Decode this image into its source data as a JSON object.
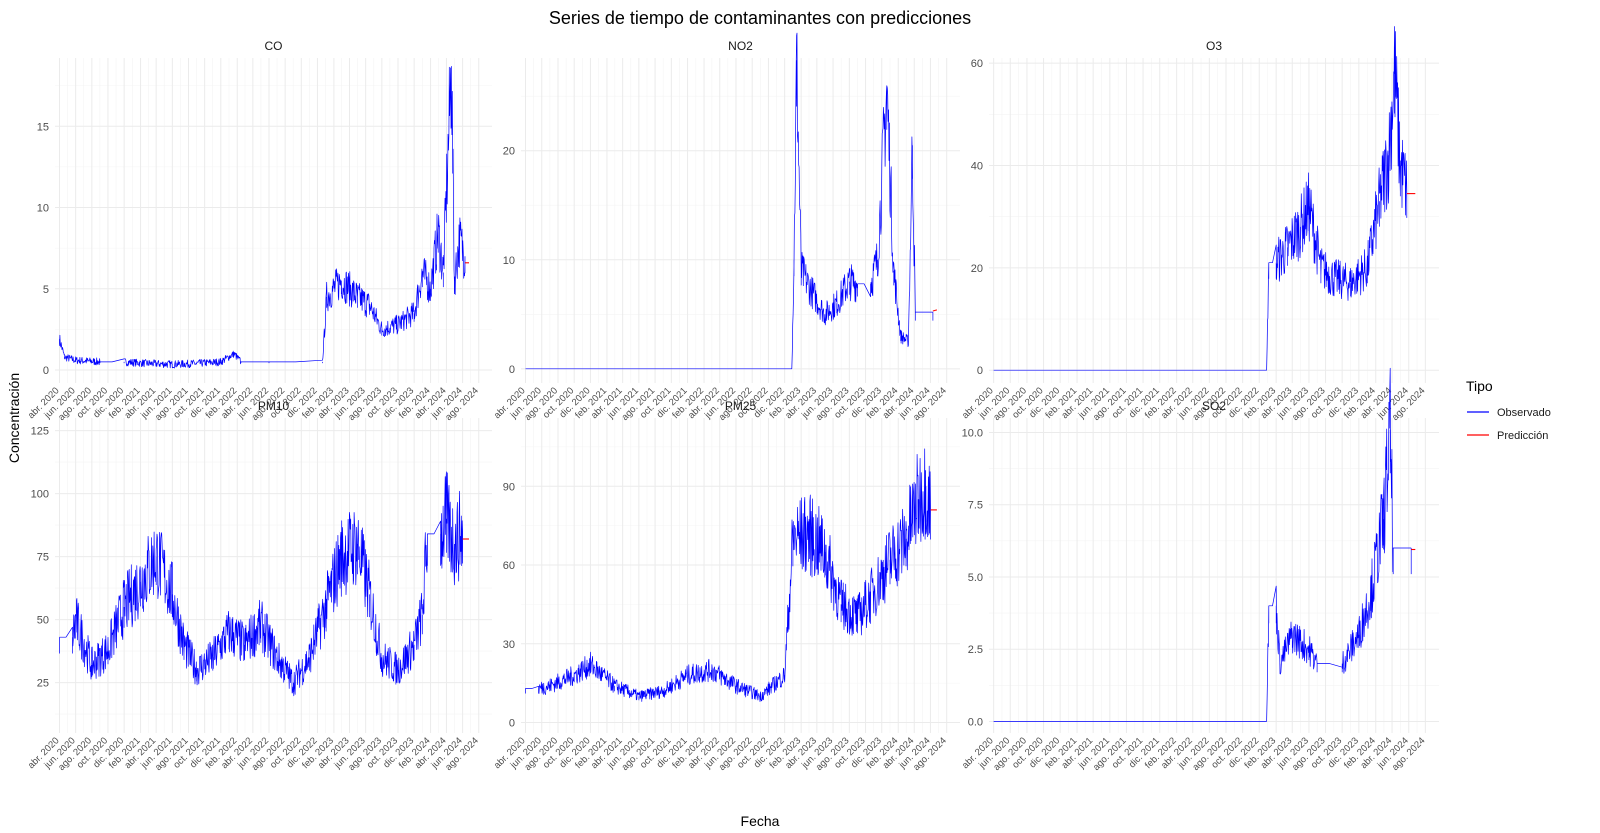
{
  "chart_data": {
    "type": "line",
    "title": "Series de tiempo de contaminantes con predicciones",
    "xlabel": "Fecha",
    "ylabel": "Concentración",
    "legend": {
      "title": "Tipo",
      "position": "right",
      "entries": [
        {
          "name": "Observado",
          "color": "#0000ff"
        },
        {
          "name": "Predicción",
          "color": "#ff0000"
        }
      ]
    },
    "grid": true,
    "x_ticks": [
      "abr. 2020",
      "jun. 2020",
      "ago. 2020",
      "oct. 2020",
      "dic. 2020",
      "feb. 2021",
      "abr. 2021",
      "jun. 2021",
      "ago. 2021",
      "oct. 2021",
      "dic. 2021",
      "feb. 2022",
      "abr. 2022",
      "jun. 2022",
      "ago. 2022",
      "oct. 2022",
      "dic. 2022",
      "feb. 2023",
      "abr. 2023",
      "jun. 2023",
      "ago. 2023",
      "oct. 2023",
      "dic. 2023",
      "feb. 2024",
      "abr. 2024",
      "jun. 2024",
      "ago. 2024"
    ],
    "xlim": [
      "2020-03-15",
      "2024-09-20"
    ],
    "panels": [
      {
        "name": "CO",
        "ylim": [
          -0.8,
          19.2
        ],
        "y_ticks": [
          0,
          5,
          10,
          15
        ],
        "y_tick_labels": [
          "0",
          "5",
          "10",
          "15"
        ],
        "series": [
          {
            "name": "Observado",
            "color": "#0000ff",
            "points": [
              [
                "2020-04-01",
                1.9
              ],
              [
                "2020-04-20",
                0.8
              ],
              [
                "2020-06-01",
                0.6
              ],
              [
                "2020-09-01",
                0.5
              ],
              [
                "2020-12-01",
                0.5
              ],
              [
                "2021-03-01",
                0.4
              ],
              [
                "2021-06-01",
                0.35
              ],
              [
                "2021-09-01",
                0.4
              ],
              [
                "2021-12-01",
                0.5
              ],
              [
                "2022-01-20",
                1.0
              ],
              [
                "2022-02-15",
                0.5
              ],
              [
                "2022-06-01",
                0.5
              ],
              [
                "2022-12-20",
                0.5
              ],
              [
                "2023-01-05",
                4.5
              ],
              [
                "2023-03-01",
                5.5
              ],
              [
                "2023-05-01",
                4.5
              ],
              [
                "2023-06-15",
                4.0
              ],
              [
                "2023-08-01",
                2.5
              ],
              [
                "2023-10-01",
                2.8
              ],
              [
                "2023-12-01",
                3.5
              ],
              [
                "2024-01-01",
                6.0
              ],
              [
                "2024-02-01",
                5.0
              ],
              [
                "2024-03-01",
                8.5
              ],
              [
                "2024-03-20",
                6.0
              ],
              [
                "2024-04-20",
                18.7
              ],
              [
                "2024-05-01",
                5.5
              ],
              [
                "2024-05-20",
                8.0
              ],
              [
                "2024-06-10",
                7.0
              ]
            ]
          },
          {
            "name": "Predicción",
            "color": "#ff0000",
            "points": [
              [
                "2024-06-10",
                6.6
              ],
              [
                "2024-06-25",
                6.6
              ]
            ]
          }
        ]
      },
      {
        "name": "NO2",
        "ylim": [
          -1.3,
          28.5
        ],
        "y_ticks": [
          0,
          10,
          20
        ],
        "y_tick_labels": [
          "0",
          "10",
          "20"
        ],
        "series": [
          {
            "name": "Observado",
            "color": "#0000ff",
            "points": [
              [
                "2020-04-01",
                0
              ],
              [
                "2022-12-28",
                0
              ],
              [
                "2023-01-05",
                10.0
              ],
              [
                "2023-01-15",
                28.3
              ],
              [
                "2023-02-01",
                9.0
              ],
              [
                "2023-03-15",
                7.0
              ],
              [
                "2023-05-01",
                5.0
              ],
              [
                "2023-06-15",
                6.0
              ],
              [
                "2023-08-01",
                8.0
              ],
              [
                "2023-09-01",
                7.8
              ],
              [
                "2023-10-20",
                7.8
              ],
              [
                "2023-11-15",
                10.0
              ],
              [
                "2023-12-20",
                25.8
              ],
              [
                "2024-01-15",
                9.0
              ],
              [
                "2024-02-10",
                3.0
              ],
              [
                "2024-03-10",
                2.5
              ],
              [
                "2024-03-25",
                20.5
              ],
              [
                "2024-04-05",
                5.2
              ],
              [
                "2024-06-10",
                5.2
              ]
            ]
          },
          {
            "name": "Predicción",
            "color": "#ff0000",
            "points": [
              [
                "2024-06-10",
                5.3
              ],
              [
                "2024-06-25",
                5.4
              ]
            ]
          }
        ]
      },
      {
        "name": "O3",
        "ylim": [
          -2.5,
          61
        ],
        "y_ticks": [
          0,
          20,
          40,
          60
        ],
        "y_tick_labels": [
          "0",
          "20",
          "40",
          "60"
        ],
        "series": [
          {
            "name": "Observado",
            "color": "#0000ff",
            "points": [
              [
                "2020-04-01",
                0
              ],
              [
                "2022-12-28",
                0
              ],
              [
                "2023-01-05",
                21.0
              ],
              [
                "2023-02-01",
                21.0
              ],
              [
                "2023-03-15",
                24.0
              ],
              [
                "2023-05-01",
                28.0
              ],
              [
                "2023-06-01",
                32.0
              ],
              [
                "2023-07-15",
                20.0
              ],
              [
                "2023-09-01",
                18.0
              ],
              [
                "2023-11-01",
                17.0
              ],
              [
                "2024-01-01",
                20.0
              ],
              [
                "2024-02-15",
                33.0
              ],
              [
                "2024-03-20",
                42.0
              ],
              [
                "2024-04-10",
                59.0
              ],
              [
                "2024-05-01",
                40.0
              ],
              [
                "2024-05-25",
                35.0
              ]
            ]
          },
          {
            "name": "Predicción",
            "color": "#ff0000",
            "points": [
              [
                "2024-05-25",
                34.5
              ],
              [
                "2024-06-25",
                34.5
              ]
            ]
          }
        ]
      },
      {
        "name": "PM10",
        "ylim": [
          5,
          130
        ],
        "y_ticks": [
          25,
          50,
          75,
          100,
          125
        ],
        "y_tick_labels": [
          "25",
          "50",
          "75",
          "100",
          "125"
        ],
        "series": [
          {
            "name": "Observado",
            "color": "#0000ff",
            "points": [
              [
                "2020-04-01",
                43
              ],
              [
                "2020-05-20",
                43
              ],
              [
                "2020-06-01",
                50
              ],
              [
                "2020-08-01",
                32
              ],
              [
                "2020-10-01",
                38
              ],
              [
                "2020-12-01",
                55
              ],
              [
                "2021-02-01",
                65
              ],
              [
                "2021-04-01",
                75
              ],
              [
                "2021-06-01",
                60
              ],
              [
                "2021-07-15",
                40
              ],
              [
                "2021-09-01",
                30
              ],
              [
                "2021-11-01",
                35
              ],
              [
                "2022-01-01",
                45
              ],
              [
                "2022-03-01",
                40
              ],
              [
                "2022-05-01",
                48
              ],
              [
                "2022-07-01",
                35
              ],
              [
                "2022-09-01",
                25
              ],
              [
                "2022-11-01",
                35
              ],
              [
                "2023-01-01",
                55
              ],
              [
                "2023-03-01",
                75
              ],
              [
                "2023-05-01",
                80
              ],
              [
                "2023-06-15",
                60
              ],
              [
                "2023-08-01",
                35
              ],
              [
                "2023-10-01",
                30
              ],
              [
                "2023-12-01",
                40
              ],
              [
                "2024-01-01",
                52
              ],
              [
                "2024-01-20",
                84
              ],
              [
                "2024-03-10",
                84
              ],
              [
                "2024-04-01",
                90
              ],
              [
                "2024-05-01",
                80
              ],
              [
                "2024-06-01",
                85
              ]
            ]
          },
          {
            "name": "Predicción",
            "color": "#ff0000",
            "points": [
              [
                "2024-06-01",
                82
              ],
              [
                "2024-06-25",
                82
              ]
            ]
          }
        ]
      },
      {
        "name": "PM25",
        "ylim": [
          -4,
          116
        ],
        "y_ticks": [
          0,
          30,
          60,
          90
        ],
        "y_tick_labels": [
          "0",
          "30",
          "60",
          "90"
        ],
        "series": [
          {
            "name": "Observado",
            "color": "#0000ff",
            "points": [
              [
                "2020-04-01",
                13
              ],
              [
                "2020-05-20",
                13
              ],
              [
                "2020-07-01",
                14
              ],
              [
                "2020-10-01",
                18
              ],
              [
                "2020-12-01",
                22
              ],
              [
                "2021-03-01",
                14
              ],
              [
                "2021-06-01",
                10
              ],
              [
                "2021-09-01",
                12
              ],
              [
                "2021-12-01",
                18
              ],
              [
                "2022-03-01",
                20
              ],
              [
                "2022-06-01",
                14
              ],
              [
                "2022-09-01",
                10
              ],
              [
                "2022-12-01",
                18
              ],
              [
                "2023-01-01",
                70
              ],
              [
                "2023-03-01",
                72
              ],
              [
                "2023-05-01",
                65
              ],
              [
                "2023-07-01",
                45
              ],
              [
                "2023-09-01",
                40
              ],
              [
                "2023-11-01",
                50
              ],
              [
                "2024-01-01",
                62
              ],
              [
                "2024-03-01",
                70
              ],
              [
                "2024-04-15",
                85
              ],
              [
                "2024-05-15",
                90
              ],
              [
                "2024-06-01",
                82
              ]
            ]
          },
          {
            "name": "Predicción",
            "color": "#ff0000",
            "points": [
              [
                "2024-06-01",
                81
              ],
              [
                "2024-06-25",
                81
              ]
            ]
          }
        ]
      },
      {
        "name": "SO2",
        "ylim": [
          -0.4,
          10.5
        ],
        "y_ticks": [
          0,
          2.5,
          5,
          7.5,
          10
        ],
        "y_tick_labels": [
          "0.0",
          "2.5",
          "5.0",
          "7.5",
          "10.0"
        ],
        "series": [
          {
            "name": "Observado",
            "color": "#0000ff",
            "points": [
              [
                "2020-04-01",
                0
              ],
              [
                "2022-12-28",
                0
              ],
              [
                "2023-01-05",
                4.0
              ],
              [
                "2023-02-01",
                4.0
              ],
              [
                "2023-02-15",
                2.0
              ],
              [
                "2023-04-01",
                3.0
              ],
              [
                "2023-06-01",
                2.5
              ],
              [
                "2023-07-01",
                2.0
              ],
              [
                "2023-10-01",
                2.0
              ],
              [
                "2023-12-01",
                3.0
              ],
              [
                "2024-01-15",
                4.5
              ],
              [
                "2024-03-01",
                7.0
              ],
              [
                "2024-03-25",
                10.1
              ],
              [
                "2024-04-05",
                6.0
              ],
              [
                "2024-06-10",
                6.0
              ]
            ]
          },
          {
            "name": "Predicción",
            "color": "#ff0000",
            "points": [
              [
                "2024-06-10",
                5.95
              ],
              [
                "2024-06-25",
                5.95
              ]
            ]
          }
        ]
      }
    ]
  }
}
